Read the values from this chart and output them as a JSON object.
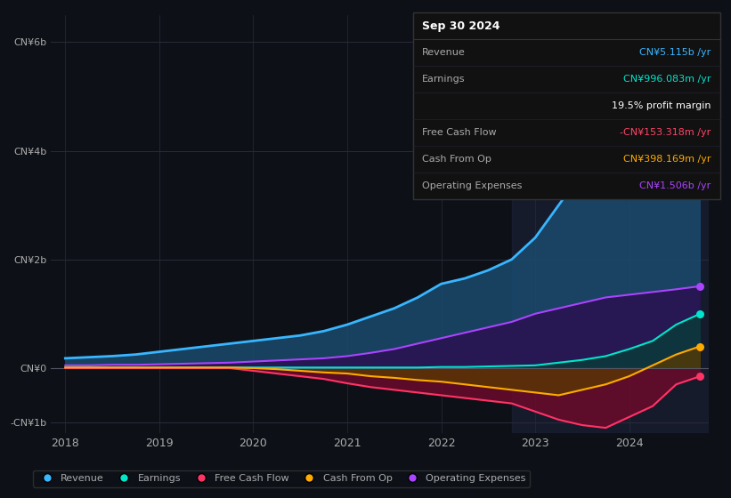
{
  "bg_color": "#0d1117",
  "plot_bg_color": "#0d1117",
  "grid_color": "#2a2a3a",
  "years_x": [
    2018.0,
    2018.25,
    2018.5,
    2018.75,
    2019.0,
    2019.25,
    2019.5,
    2019.75,
    2020.0,
    2020.25,
    2020.5,
    2020.75,
    2021.0,
    2021.25,
    2021.5,
    2021.75,
    2022.0,
    2022.25,
    2022.5,
    2022.75,
    2023.0,
    2023.25,
    2023.5,
    2023.75,
    2024.0,
    2024.25,
    2024.5,
    2024.75
  ],
  "revenue": [
    0.18,
    0.2,
    0.22,
    0.25,
    0.3,
    0.35,
    0.4,
    0.45,
    0.5,
    0.55,
    0.6,
    0.68,
    0.8,
    0.95,
    1.1,
    1.3,
    1.55,
    1.65,
    1.8,
    2.0,
    2.4,
    3.0,
    3.6,
    4.2,
    4.7,
    5.0,
    5.1,
    5.115
  ],
  "earnings": [
    0.01,
    0.01,
    0.01,
    0.01,
    0.01,
    0.01,
    0.01,
    0.01,
    0.01,
    0.01,
    0.01,
    0.01,
    0.01,
    0.01,
    0.01,
    0.01,
    0.02,
    0.02,
    0.03,
    0.04,
    0.05,
    0.1,
    0.15,
    0.22,
    0.35,
    0.5,
    0.8,
    0.996
  ],
  "free_cash_flow": [
    0.0,
    0.0,
    0.0,
    0.0,
    0.0,
    0.0,
    0.0,
    0.0,
    -0.05,
    -0.1,
    -0.15,
    -0.2,
    -0.28,
    -0.35,
    -0.4,
    -0.45,
    -0.5,
    -0.55,
    -0.6,
    -0.65,
    -0.8,
    -0.95,
    -1.05,
    -1.1,
    -0.9,
    -0.7,
    -0.3,
    -0.153
  ],
  "cash_from_op": [
    0.01,
    0.01,
    0.01,
    0.01,
    0.01,
    0.01,
    0.01,
    0.01,
    0.0,
    -0.02,
    -0.05,
    -0.08,
    -0.1,
    -0.15,
    -0.18,
    -0.22,
    -0.25,
    -0.3,
    -0.35,
    -0.4,
    -0.45,
    -0.5,
    -0.4,
    -0.3,
    -0.15,
    0.05,
    0.25,
    0.398
  ],
  "op_expenses": [
    0.05,
    0.05,
    0.06,
    0.06,
    0.07,
    0.08,
    0.09,
    0.1,
    0.12,
    0.14,
    0.16,
    0.18,
    0.22,
    0.28,
    0.35,
    0.45,
    0.55,
    0.65,
    0.75,
    0.85,
    1.0,
    1.1,
    1.2,
    1.3,
    1.35,
    1.4,
    1.45,
    1.506
  ],
  "revenue_color": "#38b6ff",
  "earnings_color": "#00e5cc",
  "fcf_color": "#ff3366",
  "cashop_color": "#ffaa00",
  "opex_color": "#aa44ff",
  "revenue_fill": "#1a4a6e",
  "earnings_fill": "#0a3a3a",
  "fcf_fill": "#6a0a2a",
  "cashop_fill": "#5a3a00",
  "opex_fill": "#2a1050",
  "highlight_x_start": 2022.75,
  "highlight_x_end": 2024.85,
  "highlight_color": "#1a2035",
  "ylim": [
    -1.2,
    6.5
  ],
  "xlim": [
    2017.85,
    2024.85
  ],
  "yticks": [
    -1.0,
    0.0,
    2.0,
    4.0,
    6.0
  ],
  "ytick_labels": [
    "-CN¥1b",
    "CN¥0",
    "CN¥2b",
    "CN¥4b",
    "CN¥6b"
  ],
  "xtick_years": [
    2018,
    2019,
    2020,
    2021,
    2022,
    2023,
    2024
  ],
  "legend_items": [
    "Revenue",
    "Earnings",
    "Free Cash Flow",
    "Cash From Op",
    "Operating Expenses"
  ],
  "tooltip_title": "Sep 30 2024",
  "tooltip_rows": [
    {
      "label": "Revenue",
      "value": "CN¥5.115b /yr",
      "color": "#38b6ff"
    },
    {
      "label": "Earnings",
      "value": "CN¥996.083m /yr",
      "color": "#00e5cc"
    },
    {
      "label": "",
      "value": "19.5% profit margin",
      "color": "#ffffff"
    },
    {
      "label": "Free Cash Flow",
      "value": "-CN¥153.318m /yr",
      "color": "#ff4466"
    },
    {
      "label": "Cash From Op",
      "value": "CN¥398.169m /yr",
      "color": "#ffaa00"
    },
    {
      "label": "Operating Expenses",
      "value": "CN¥1.506b /yr",
      "color": "#aa44ff"
    }
  ]
}
